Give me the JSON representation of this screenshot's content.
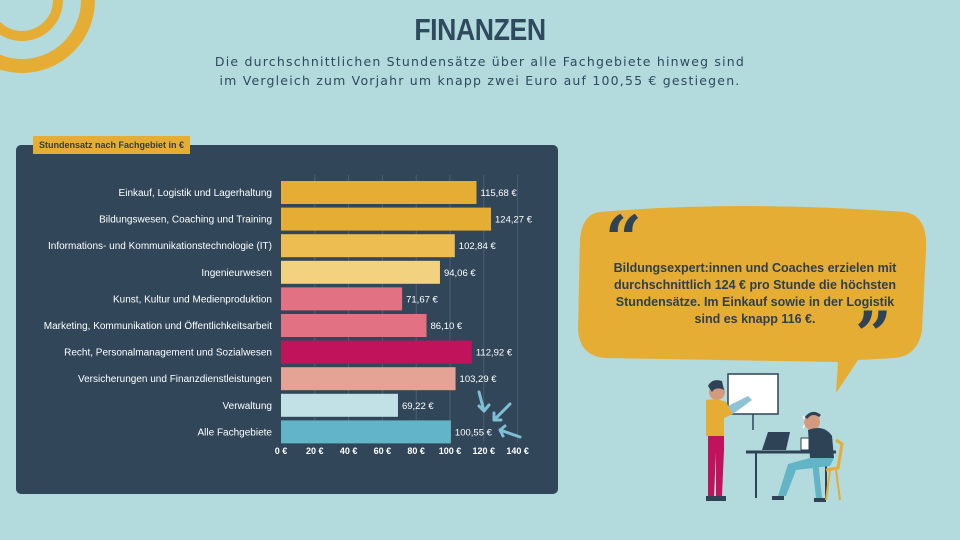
{
  "page": {
    "title": "FINANZEN",
    "subtitle_line1": "Die durchschnittlichen Stundensätze über alle Fachgebiete hinweg sind",
    "subtitle_line2": "im Vergleich zum Vorjahr um knapp zwei Euro auf 100,55 € gestiegen."
  },
  "quote": {
    "open_mark": "“",
    "text": "Bildungsexpert:innen und Coaches erzielen mit durchschnittlich 124 € pro Stunde die höchsten Stundensätze. Im Einkauf sowie in der Logistik sind es knapp 116 €.",
    "close_mark": "”"
  },
  "colors": {
    "background": "#b3dadd",
    "panel": "#314659",
    "accent": "#e5ad33",
    "title": "#2f4a5e"
  },
  "chart_data": {
    "type": "bar",
    "orientation": "horizontal",
    "title": "Stundensatz nach Fachgebiet in €",
    "categories": [
      "Einkauf, Logistik und Lagerhaltung",
      "Bildungswesen, Coaching und Training",
      "Informations- und Kommunikationstechnologie (IT)",
      "Ingenieurwesen",
      "Kunst, Kultur und Medienproduktion",
      "Marketing, Kommunikation und Öffentlichkeitsarbeit",
      "Recht, Personalmanagement und Sozialwesen",
      "Versicherungen und Finanzdienstleistungen",
      "Verwaltung",
      "Alle Fachgebiete"
    ],
    "values": [
      115.68,
      124.27,
      102.84,
      94.06,
      71.67,
      86.1,
      112.92,
      103.29,
      69.22,
      100.55
    ],
    "value_labels": [
      "115,68 €",
      "124,27 €",
      "102,84 €",
      "94,06 €",
      "71,67 €",
      "86,10 €",
      "112,92 €",
      "103,29 €",
      "69,22 €",
      "100,55 €"
    ],
    "bar_colors": [
      "#e5ad33",
      "#e5ad33",
      "#eebd52",
      "#f2d27e",
      "#e27184",
      "#e27184",
      "#c0135c",
      "#e5a395",
      "#c2e1e6",
      "#62b4c7"
    ],
    "xlim": [
      0,
      140
    ],
    "xticks": [
      0,
      20,
      40,
      60,
      80,
      100,
      120,
      140
    ],
    "xtick_labels": [
      "0 €",
      "20 €",
      "40 €",
      "60 €",
      "80 €",
      "100 €",
      "120 €",
      "140 €"
    ],
    "grid": "vertical",
    "xlabel": "",
    "ylabel": ""
  }
}
